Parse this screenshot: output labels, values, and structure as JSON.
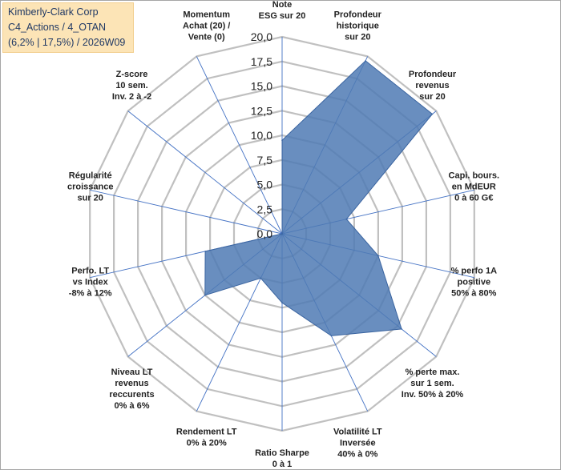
{
  "title_box": {
    "line1": "Kimberly-Clark Corp",
    "line2": "C4_Actions / 4_OTAN",
    "line3": "(6,2% | 17,5%) / 2026W09",
    "background": "#fce4b6"
  },
  "colors": {
    "fill": "#4f7ab4",
    "fill_opacity": 0.85,
    "stroke": "#3a64a0",
    "grid": "#c0c0c0",
    "spoke": "#4472c4"
  },
  "chart_data": {
    "type": "radar",
    "range": [
      0,
      20
    ],
    "tick_step": 2.5,
    "tick_labels": [
      "0,0",
      "2,5",
      "5,0",
      "7,5",
      "10,0",
      "12,5",
      "15,0",
      "17,5",
      "20,0"
    ],
    "axes": [
      {
        "label": [
          "Note",
          "ESG sur 20"
        ],
        "value": 9.5
      },
      {
        "label": [
          "Profondeur",
          "historique",
          "sur 20"
        ],
        "value": 19.5
      },
      {
        "label": [
          "Profondeur",
          "revenus",
          "sur 20"
        ],
        "value": 19.5
      },
      {
        "label": [
          "Capi. bours.",
          "en MdEUR",
          "0 à 60 G€"
        ],
        "value": 6.7
      },
      {
        "label": [
          "% perfo 1A",
          "positive",
          "50% à 80%"
        ],
        "value": 10.0
      },
      {
        "label": [
          "% perte max.",
          "sur 1 sem.",
          "Inv. 50% à 20%"
        ],
        "value": 15.5
      },
      {
        "label": [
          "Volatilité LT",
          "Inversée",
          "40% à 0%"
        ],
        "value": 11.5
      },
      {
        "label": [
          "Ratio Sharpe",
          "0 à 1"
        ],
        "value": 7.0
      },
      {
        "label": [
          "Rendement LT",
          "0% à 20%"
        ],
        "value": 5.0
      },
      {
        "label": [
          "Niveau LT",
          "revenus",
          "reccurents",
          "0% à 6%"
        ],
        "value": 10.0
      },
      {
        "label": [
          "Perfo. LT",
          "vs Index",
          "-8% à 12%"
        ],
        "value": 8.0
      },
      {
        "label": [
          "Régularité",
          "croissance",
          "sur 20"
        ],
        "value": 0.0
      },
      {
        "label": [
          "Z-score",
          "10 sem.",
          "Inv. 2 à -2"
        ],
        "value": 0.0
      },
      {
        "label": [
          "Momentum",
          "Achat (20) /",
          "Vente (0)"
        ],
        "value": 0.0
      }
    ]
  }
}
